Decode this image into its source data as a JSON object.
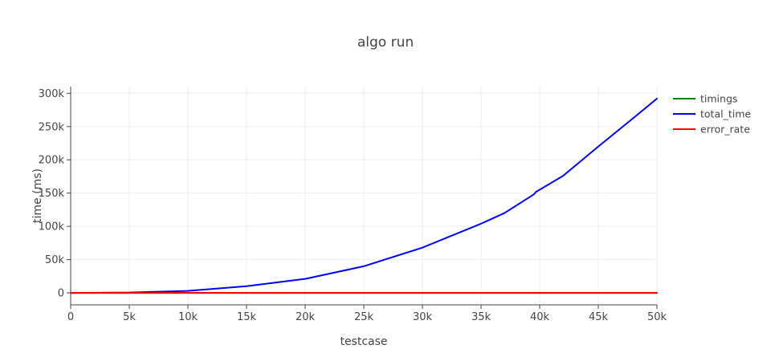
{
  "chart_data": {
    "type": "line",
    "title": "algo run",
    "xlabel": "testcase",
    "ylabel": "time (ms)",
    "xlim": [
      0,
      50000
    ],
    "ylim": [
      -18000,
      310000
    ],
    "x_ticks": [
      0,
      5000,
      10000,
      15000,
      20000,
      25000,
      30000,
      35000,
      40000,
      45000,
      50000
    ],
    "x_tick_labels": [
      "0",
      "5k",
      "10k",
      "15k",
      "20k",
      "25k",
      "30k",
      "35k",
      "40k",
      "45k",
      "50k"
    ],
    "y_ticks": [
      0,
      50000,
      100000,
      150000,
      200000,
      250000,
      300000
    ],
    "y_tick_labels": [
      "0",
      "50k",
      "100k",
      "150k",
      "200k",
      "250k",
      "300k"
    ],
    "grid": true,
    "legend_position": "top-right",
    "series": [
      {
        "name": "timings",
        "color": "#008000",
        "x": [
          0,
          5000,
          10000,
          15000,
          20000,
          25000,
          30000,
          35000,
          40000,
          45000,
          50000
        ],
        "y": [
          0,
          0,
          0,
          0,
          0,
          0,
          0,
          0,
          0,
          0,
          0
        ]
      },
      {
        "name": "total_time",
        "color": "#0000ff",
        "x": [
          0,
          5000,
          10000,
          15000,
          20000,
          25000,
          30000,
          35000,
          37000,
          39500,
          39700,
          40000,
          42000,
          45000,
          48000,
          50000
        ],
        "y": [
          0,
          500,
          3000,
          10000,
          21000,
          40000,
          68000,
          104000,
          120000,
          148000,
          152000,
          155000,
          176000,
          220000,
          263000,
          292000
        ]
      },
      {
        "name": "error_rate",
        "color": "#ff0000",
        "x": [
          0,
          5000,
          10000,
          15000,
          20000,
          25000,
          30000,
          35000,
          40000,
          45000,
          50000
        ],
        "y": [
          0,
          0,
          0,
          0,
          0,
          0,
          0,
          0,
          0,
          0,
          0
        ]
      }
    ]
  }
}
